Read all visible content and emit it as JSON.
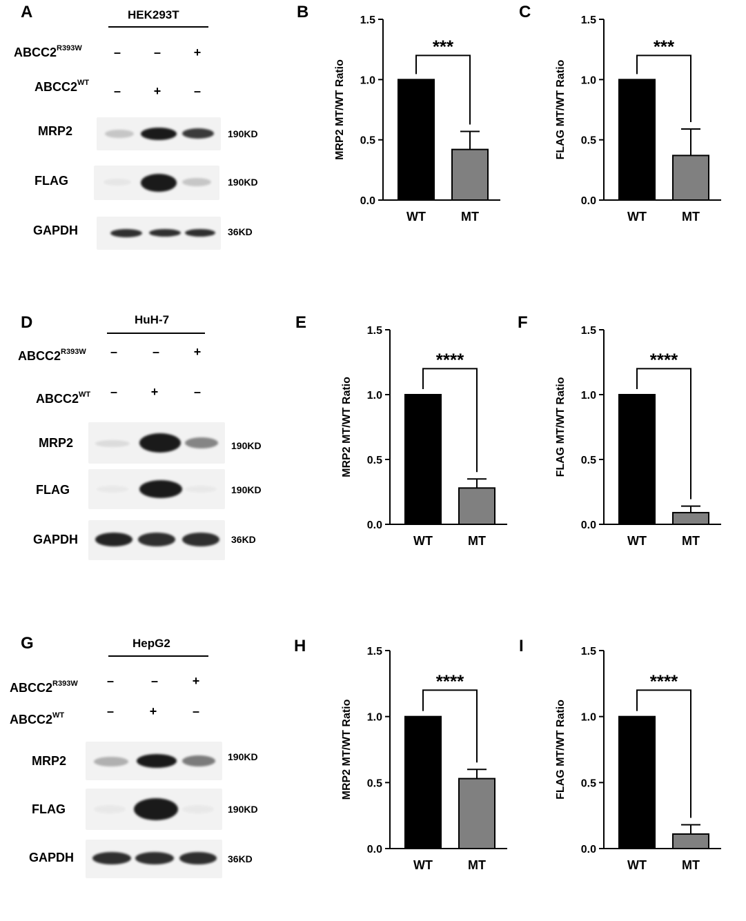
{
  "panels": [
    {
      "blot": {
        "letter": "A",
        "cell_line": "HEK293T",
        "rows": [
          {
            "label": "ABCC2",
            "sup": "R393W",
            "symbols": [
              "–",
              "–",
              "+"
            ]
          },
          {
            "label": "ABCC2",
            "sup": "WT",
            "symbols": [
              "–",
              "+",
              "–"
            ]
          }
        ],
        "bands": [
          {
            "label": "MRP2",
            "kd": "190KD"
          },
          {
            "label": "FLAG",
            "kd": "190KD"
          },
          {
            "label": "GAPDH",
            "kd": "36KD"
          }
        ],
        "band_intensity": [
          [
            0.2,
            1.0,
            0.85
          ],
          [
            0.05,
            1.0,
            0.2
          ],
          [
            0.9,
            0.9,
            0.9
          ]
        ]
      },
      "charts": [
        {
          "letter": "B",
          "chart_data": {
            "type": "bar",
            "categories": [
              "WT",
              "MT"
            ],
            "values": [
              1.0,
              0.42
            ],
            "errors": [
              0,
              0.15
            ],
            "ylabel": "MRP2 MT/WT Ratio",
            "ylim": [
              0,
              1.5
            ],
            "yticks": [
              "0.0",
              "0.5",
              "1.0",
              "1.5"
            ],
            "significance": "***",
            "colors": [
              "#000000",
              "#808080"
            ]
          }
        },
        {
          "letter": "C",
          "chart_data": {
            "type": "bar",
            "categories": [
              "WT",
              "MT"
            ],
            "values": [
              1.0,
              0.37
            ],
            "errors": [
              0,
              0.22
            ],
            "ylabel": "FLAG MT/WT Ratio",
            "ylim": [
              0,
              1.5
            ],
            "yticks": [
              "0.0",
              "0.5",
              "1.0",
              "1.5"
            ],
            "significance": "***",
            "colors": [
              "#000000",
              "#808080"
            ]
          }
        }
      ]
    },
    {
      "blot": {
        "letter": "D",
        "cell_line": "HuH-7",
        "rows": [
          {
            "label": "ABCC2",
            "sup": "R393W",
            "symbols": [
              "–",
              "–",
              "+"
            ]
          },
          {
            "label": "ABCC2",
            "sup": "WT",
            "symbols": [
              "–",
              "+",
              "–"
            ]
          }
        ],
        "bands": [
          {
            "label": "MRP2",
            "kd": "190KD"
          },
          {
            "label": "FLAG",
            "kd": "190KD"
          },
          {
            "label": "GAPDH",
            "kd": "36KD"
          }
        ],
        "band_intensity": [
          [
            0.1,
            1.0,
            0.5
          ],
          [
            0.0,
            1.0,
            0.0
          ],
          [
            0.95,
            0.9,
            0.9
          ]
        ]
      },
      "charts": [
        {
          "letter": "E",
          "chart_data": {
            "type": "bar",
            "categories": [
              "WT",
              "MT"
            ],
            "values": [
              1.0,
              0.28
            ],
            "errors": [
              0,
              0.07
            ],
            "ylabel": "MRP2 MT/WT Ratio",
            "ylim": [
              0,
              1.5
            ],
            "yticks": [
              "0.0",
              "0.5",
              "1.0",
              "1.5"
            ],
            "significance": "****",
            "colors": [
              "#000000",
              "#808080"
            ]
          }
        },
        {
          "letter": "F",
          "chart_data": {
            "type": "bar",
            "categories": [
              "WT",
              "MT"
            ],
            "values": [
              1.0,
              0.09
            ],
            "errors": [
              0,
              0.05
            ],
            "ylabel": "FLAG MT/WT Ratio",
            "ylim": [
              0,
              1.5
            ],
            "yticks": [
              "0.0",
              "0.5",
              "1.0",
              "1.5"
            ],
            "significance": "****",
            "colors": [
              "#000000",
              "#808080"
            ]
          }
        }
      ]
    },
    {
      "blot": {
        "letter": "G",
        "cell_line": "HepG2",
        "rows": [
          {
            "label": "ABCC2",
            "sup": "R393W",
            "symbols": [
              "–",
              "–",
              "+"
            ]
          },
          {
            "label": "ABCC2",
            "sup": "WT",
            "symbols": [
              "–",
              "+",
              "–"
            ]
          }
        ],
        "bands": [
          {
            "label": "MRP2",
            "kd": "190KD"
          },
          {
            "label": "FLAG",
            "kd": "190KD"
          },
          {
            "label": "GAPDH",
            "kd": "36KD"
          }
        ],
        "band_intensity": [
          [
            0.3,
            1.0,
            0.55
          ],
          [
            0.0,
            1.0,
            0.0
          ],
          [
            0.9,
            0.9,
            0.9
          ]
        ]
      },
      "charts": [
        {
          "letter": "H",
          "chart_data": {
            "type": "bar",
            "categories": [
              "WT",
              "MT"
            ],
            "values": [
              1.0,
              0.53
            ],
            "errors": [
              0,
              0.07
            ],
            "ylabel": "MRP2 MT/WT Ratio",
            "ylim": [
              0,
              1.5
            ],
            "yticks": [
              "0.0",
              "0.5",
              "1.0",
              "1.5"
            ],
            "significance": "****",
            "colors": [
              "#000000",
              "#808080"
            ]
          }
        },
        {
          "letter": "I",
          "chart_data": {
            "type": "bar",
            "categories": [
              "WT",
              "MT"
            ],
            "values": [
              1.0,
              0.11
            ],
            "errors": [
              0,
              0.07
            ],
            "ylabel": "FLAG MT/WT Ratio",
            "ylim": [
              0,
              1.5
            ],
            "yticks": [
              "0.0",
              "0.5",
              "1.0",
              "1.5"
            ],
            "significance": "****",
            "colors": [
              "#000000",
              "#808080"
            ]
          }
        }
      ]
    }
  ]
}
